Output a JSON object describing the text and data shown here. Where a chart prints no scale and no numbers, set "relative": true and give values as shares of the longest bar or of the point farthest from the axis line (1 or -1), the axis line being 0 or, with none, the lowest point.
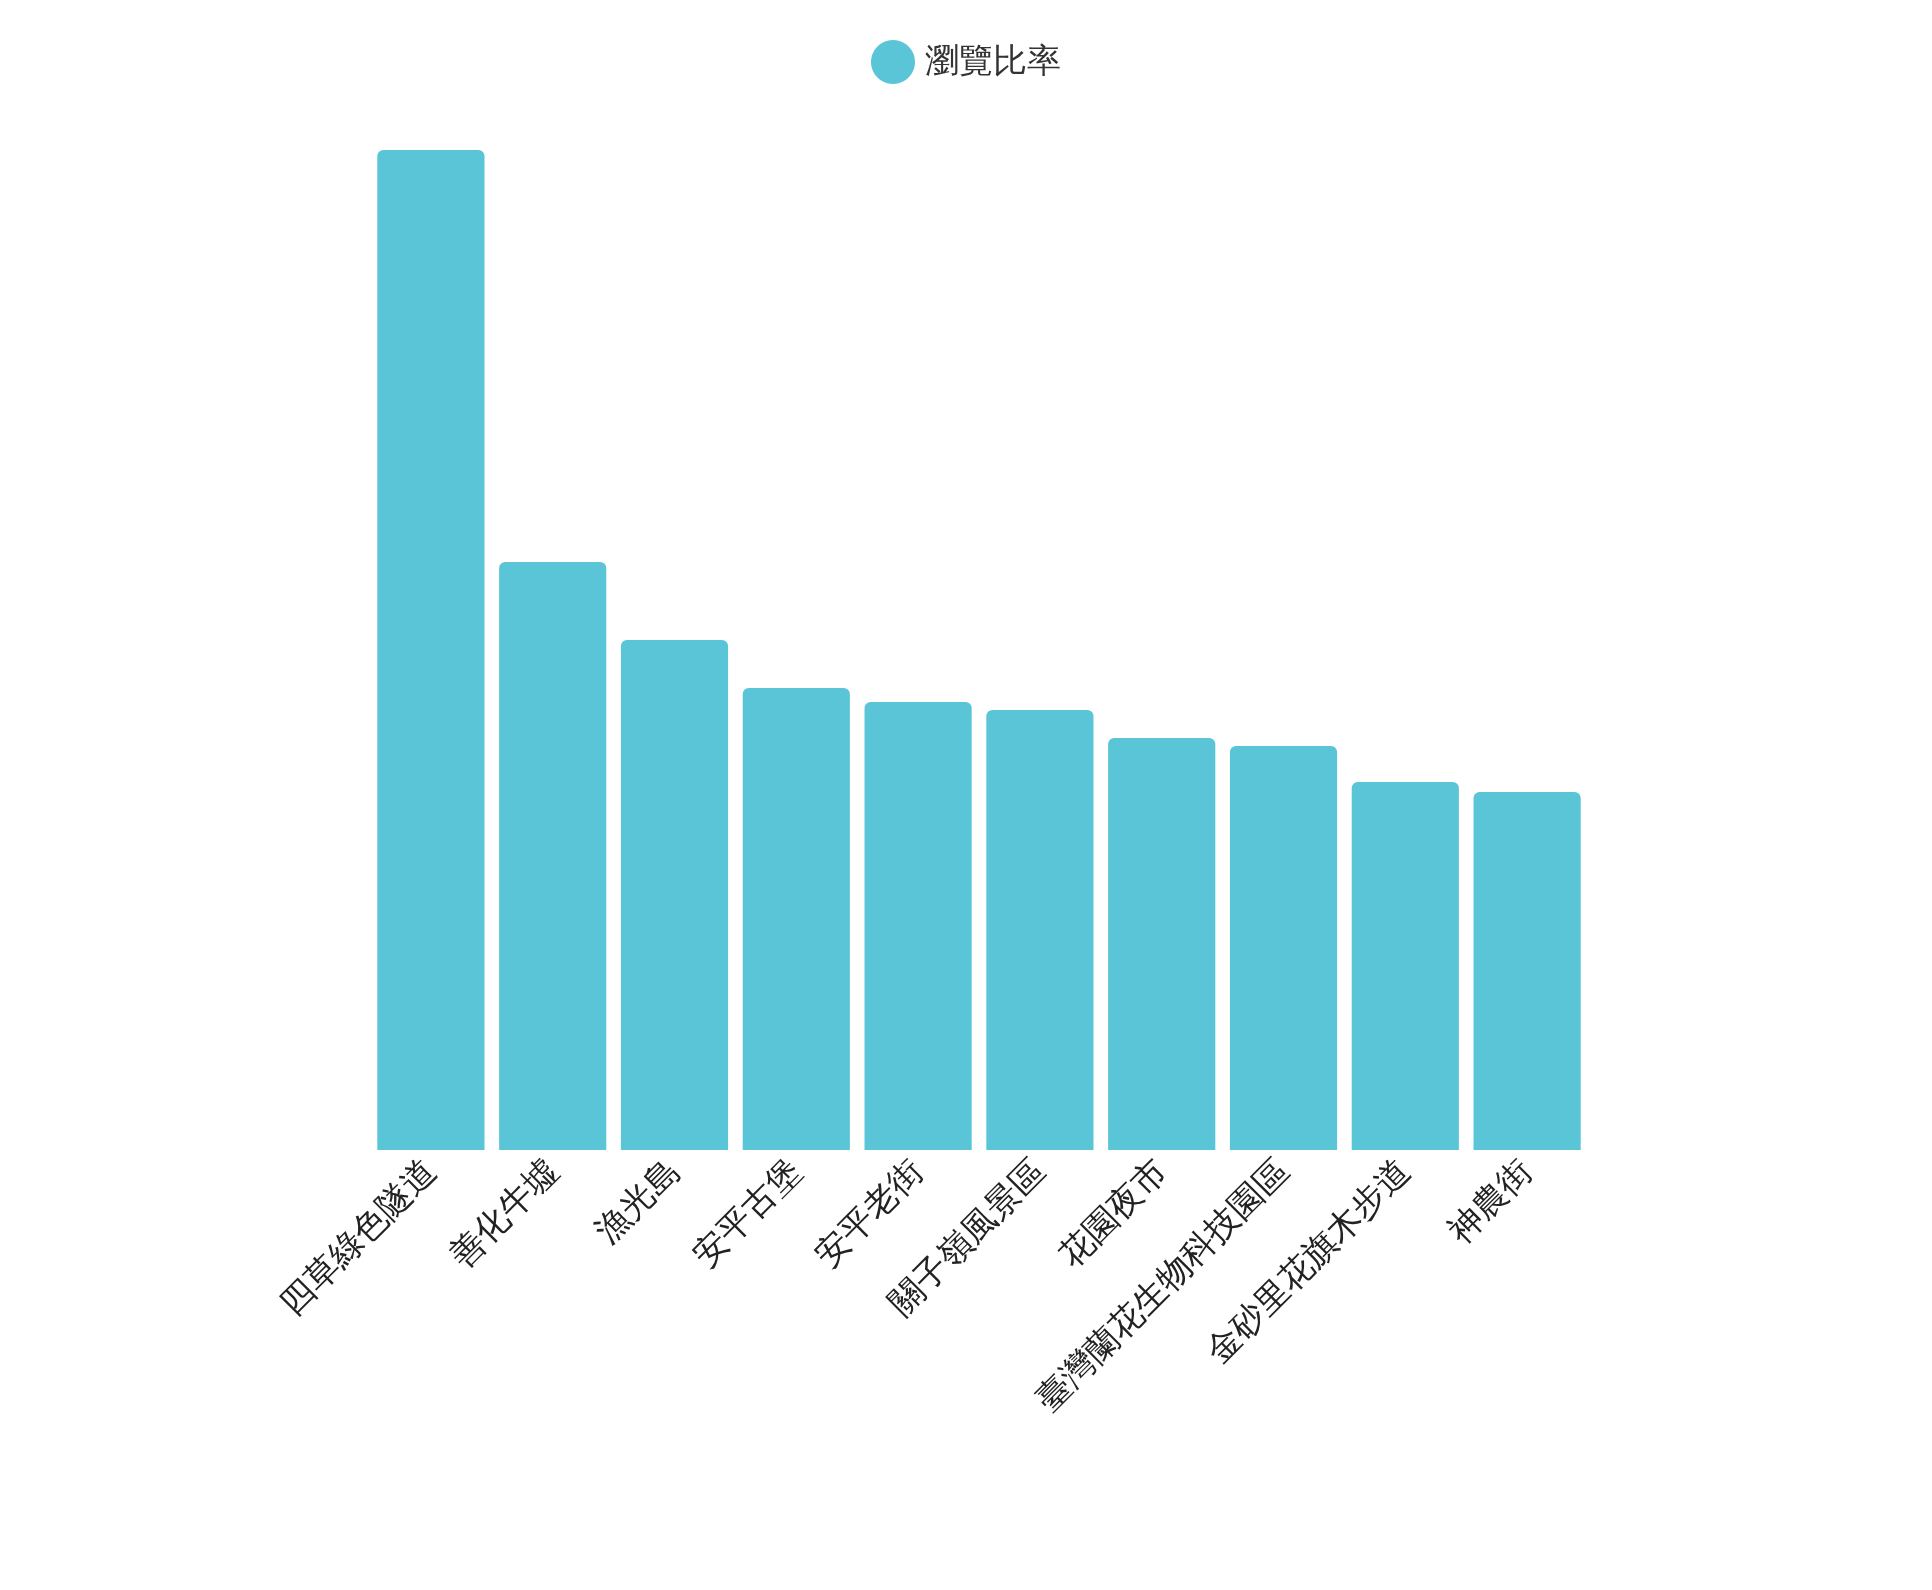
{
  "chart_data": {
    "type": "bar",
    "relative": true,
    "categories": [
      "四草綠色隧道",
      "善化牛墟",
      "漁光島",
      "安平古堡",
      "安平老街",
      "關子嶺風景區",
      "花園夜市",
      "臺灣蘭花生物科技園區",
      "金砂里花旗木步道",
      "神農街"
    ],
    "series": [
      {
        "name": "瀏覽比率",
        "color": "#5bc5d8",
        "values": [
          1,
          0.588,
          0.51,
          0.462,
          0.448,
          0.44,
          0.412,
          0.404,
          0.368,
          0.358
        ]
      }
    ],
    "legend": "top"
  }
}
